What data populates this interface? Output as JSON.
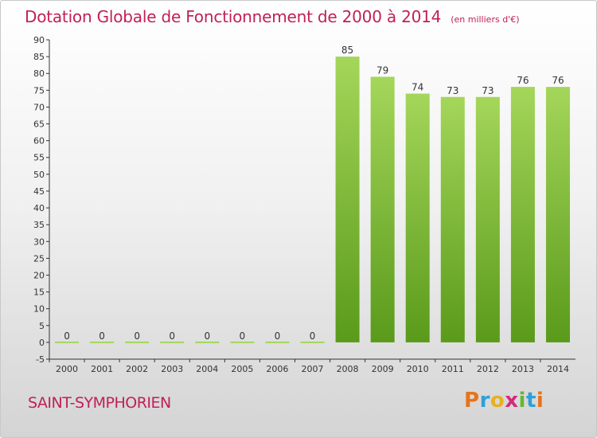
{
  "title": "Dotation Globale de Fonctionnement de 2000 à 2014",
  "unit": "(en milliers d'€)",
  "commune": "SAINT-SYMPHORIEN",
  "logo": {
    "letters": [
      "P",
      "r",
      "o",
      "x",
      "i",
      "t",
      "i"
    ],
    "colors": [
      "#e8731a",
      "#2f9fd8",
      "#e8b020",
      "#d42a7a",
      "#64b832",
      "#2f9fd8",
      "#e8731a"
    ]
  },
  "colors": {
    "title": "#c0205a",
    "bar_top": "#a4d65a",
    "bar_bottom": "#5a9a1a",
    "axis": "#333333"
  },
  "chart_data": {
    "type": "bar",
    "categories": [
      "2000",
      "2001",
      "2002",
      "2003",
      "2004",
      "2005",
      "2006",
      "2007",
      "2008",
      "2009",
      "2010",
      "2011",
      "2012",
      "2013",
      "2014"
    ],
    "values": [
      0,
      0,
      0,
      0,
      0,
      0,
      0,
      0,
      85,
      79,
      74,
      73,
      73,
      76,
      76
    ],
    "ylim": [
      -5,
      90
    ],
    "yticks": [
      -5,
      0,
      5,
      10,
      15,
      20,
      25,
      30,
      35,
      40,
      45,
      50,
      55,
      60,
      65,
      70,
      75,
      80,
      85,
      90
    ],
    "grid": false,
    "legend": "none"
  }
}
